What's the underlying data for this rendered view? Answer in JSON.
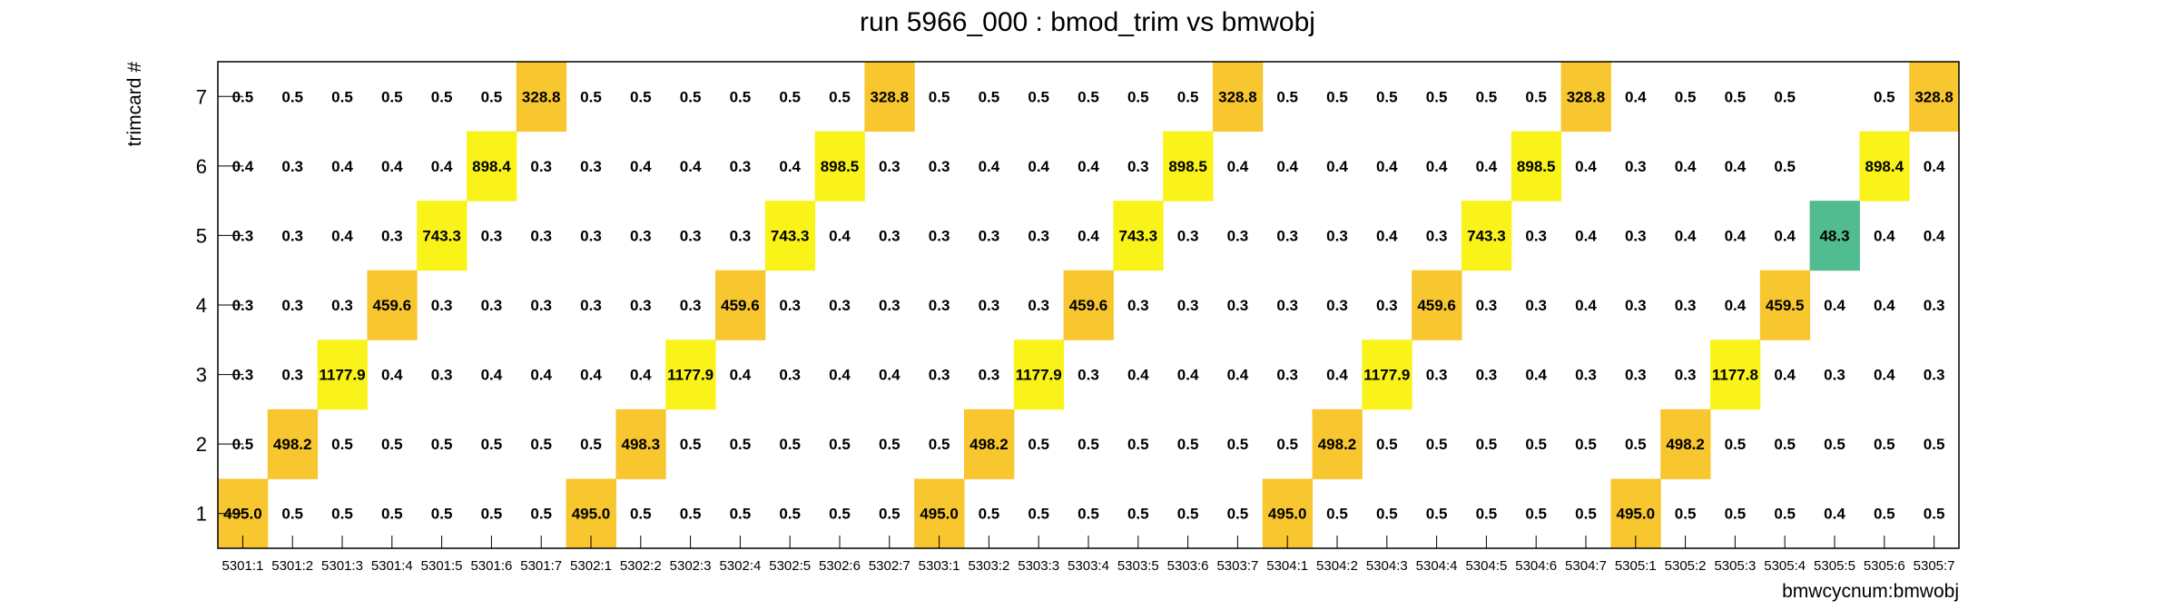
{
  "chart_data": {
    "type": "heatmap",
    "title": "run 5966_000 : bmod_trim vs bmwobj",
    "xlabel": "bmwcycnum:bmwobj",
    "ylabel": "trimcard #",
    "x_categories": [
      "5301:1",
      "5301:2",
      "5301:3",
      "5301:4",
      "5301:5",
      "5301:6",
      "5301:7",
      "5302:1",
      "5302:2",
      "5302:3",
      "5302:4",
      "5302:5",
      "5302:6",
      "5302:7",
      "5303:1",
      "5303:2",
      "5303:3",
      "5303:4",
      "5303:5",
      "5303:6",
      "5303:7",
      "5304:1",
      "5304:2",
      "5304:3",
      "5304:4",
      "5304:5",
      "5304:6",
      "5304:7",
      "5305:1",
      "5305:2",
      "5305:3",
      "5305:4",
      "5305:5",
      "5305:6",
      "5305:7"
    ],
    "y_categories": [
      "1",
      "2",
      "3",
      "4",
      "5",
      "6",
      "7"
    ],
    "series": [
      {
        "y": "1",
        "values": [
          495.0,
          0.5,
          0.5,
          0.5,
          0.5,
          0.5,
          0.5,
          495.0,
          0.5,
          0.5,
          0.5,
          0.5,
          0.5,
          0.5,
          495.0,
          0.5,
          0.5,
          0.5,
          0.5,
          0.5,
          0.5,
          495.0,
          0.5,
          0.5,
          0.5,
          0.5,
          0.5,
          0.5,
          495.0,
          0.5,
          0.5,
          0.5,
          0.4,
          0.5,
          0.5
        ]
      },
      {
        "y": "2",
        "values": [
          0.5,
          498.2,
          0.5,
          0.5,
          0.5,
          0.5,
          0.5,
          0.5,
          498.3,
          0.5,
          0.5,
          0.5,
          0.5,
          0.5,
          0.5,
          498.2,
          0.5,
          0.5,
          0.5,
          0.5,
          0.5,
          0.5,
          498.2,
          0.5,
          0.5,
          0.5,
          0.5,
          0.5,
          0.5,
          498.2,
          0.5,
          0.5,
          0.5,
          0.5,
          0.5
        ]
      },
      {
        "y": "3",
        "values": [
          0.3,
          0.3,
          1177.9,
          0.4,
          0.3,
          0.4,
          0.4,
          0.4,
          0.4,
          1177.9,
          0.4,
          0.3,
          0.4,
          0.4,
          0.3,
          0.3,
          1177.9,
          0.3,
          0.4,
          0.4,
          0.4,
          0.3,
          0.4,
          1177.9,
          0.3,
          0.3,
          0.4,
          0.3,
          0.3,
          0.3,
          1177.8,
          0.4,
          0.3,
          0.4,
          0.3
        ]
      },
      {
        "y": "4",
        "values": [
          0.3,
          0.3,
          0.3,
          459.6,
          0.3,
          0.3,
          0.3,
          0.3,
          0.3,
          0.3,
          459.6,
          0.3,
          0.3,
          0.3,
          0.3,
          0.3,
          0.3,
          459.6,
          0.3,
          0.3,
          0.3,
          0.3,
          0.3,
          0.3,
          459.6,
          0.3,
          0.3,
          0.4,
          0.3,
          0.3,
          0.4,
          459.5,
          0.4,
          0.4,
          0.3
        ]
      },
      {
        "y": "5",
        "values": [
          0.3,
          0.3,
          0.4,
          0.3,
          743.3,
          0.3,
          0.3,
          0.3,
          0.3,
          0.3,
          0.3,
          743.3,
          0.4,
          0.3,
          0.3,
          0.3,
          0.3,
          0.4,
          743.3,
          0.3,
          0.3,
          0.3,
          0.3,
          0.4,
          0.3,
          743.3,
          0.3,
          0.4,
          0.3,
          0.4,
          0.4,
          0.4,
          48.3,
          0.4,
          0.4
        ]
      },
      {
        "y": "6",
        "values": [
          0.4,
          0.3,
          0.4,
          0.4,
          0.4,
          898.4,
          0.3,
          0.3,
          0.4,
          0.4,
          0.3,
          0.4,
          898.5,
          0.3,
          0.3,
          0.4,
          0.4,
          0.4,
          0.3,
          898.5,
          0.4,
          0.4,
          0.4,
          0.4,
          0.4,
          0.4,
          898.5,
          0.4,
          0.3,
          0.4,
          0.4,
          0.5,
          null,
          898.4,
          0.4
        ]
      },
      {
        "y": "7",
        "values": [
          0.5,
          0.5,
          0.5,
          0.5,
          0.5,
          0.5,
          328.8,
          0.5,
          0.5,
          0.5,
          0.5,
          0.5,
          0.5,
          328.8,
          0.5,
          0.5,
          0.5,
          0.5,
          0.5,
          0.5,
          328.8,
          0.5,
          0.5,
          0.5,
          0.5,
          0.5,
          0.5,
          328.8,
          0.4,
          0.5,
          0.5,
          0.5,
          null,
          0.5,
          328.8
        ]
      }
    ],
    "colors": {
      "yellow": "#f9f31a",
      "orange": "#f8c62e",
      "green": "#50bc8f",
      "frame": "#000000"
    },
    "grid": false,
    "legend": "none"
  }
}
